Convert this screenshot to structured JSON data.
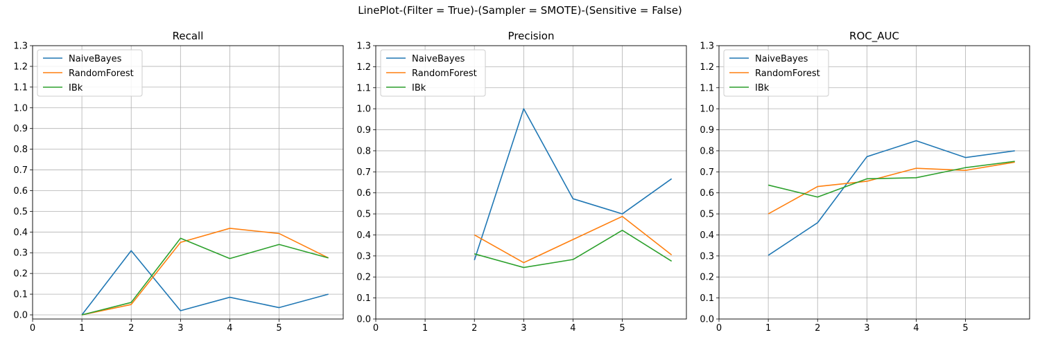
{
  "figure": {
    "suptitle": "LinePlot-(Filter = True)-(Sampler = SMOTE)-(Sensitive = False)"
  },
  "chart_data": [
    {
      "type": "line",
      "title": "Recall",
      "xlabel": "",
      "ylabel": "",
      "xlim": [
        0,
        6.3
      ],
      "ylim": [
        -0.02,
        1.3
      ],
      "xticks": [
        0,
        1,
        2,
        3,
        4,
        5
      ],
      "yticks": [
        0.0,
        0.1,
        0.2,
        0.3,
        0.4,
        0.5,
        0.6,
        0.7,
        0.8,
        0.9,
        1.0,
        1.1,
        1.2,
        1.3
      ],
      "grid": true,
      "legend": "upper-left",
      "series": [
        {
          "name": "NaiveBayes",
          "color": "#1f77b4",
          "x": [
            1,
            2,
            3,
            4,
            5,
            6
          ],
          "y": [
            0.0,
            0.31,
            0.02,
            0.085,
            0.035,
            0.1
          ]
        },
        {
          "name": "RandomForest",
          "color": "#ff7f0e",
          "x": [
            1,
            2,
            3,
            4,
            5,
            6
          ],
          "y": [
            0.0,
            0.05,
            0.35,
            0.418,
            0.393,
            0.275
          ]
        },
        {
          "name": "IBk",
          "color": "#2ca02c",
          "x": [
            1,
            2,
            3,
            4,
            5,
            6
          ],
          "y": [
            0.0,
            0.06,
            0.37,
            0.272,
            0.34,
            0.275
          ]
        }
      ]
    },
    {
      "type": "line",
      "title": "Precision",
      "xlabel": "",
      "ylabel": "",
      "xlim": [
        0,
        6.3
      ],
      "ylim": [
        0.0,
        1.3
      ],
      "xticks": [
        0,
        1,
        2,
        3,
        4,
        5
      ],
      "yticks": [
        0.0,
        0.1,
        0.2,
        0.3,
        0.4,
        0.5,
        0.6,
        0.7,
        0.8,
        0.9,
        1.0,
        1.1,
        1.2,
        1.3
      ],
      "grid": true,
      "legend": "upper-left",
      "series": [
        {
          "name": "NaiveBayes",
          "color": "#1f77b4",
          "x": [
            2,
            3,
            4,
            5,
            6
          ],
          "y": [
            0.28,
            1.0,
            0.572,
            0.5,
            0.667
          ]
        },
        {
          "name": "RandomForest",
          "color": "#ff7f0e",
          "x": [
            2,
            3,
            4,
            5,
            6
          ],
          "y": [
            0.4,
            0.268,
            0.378,
            0.488,
            0.305
          ]
        },
        {
          "name": "IBk",
          "color": "#2ca02c",
          "x": [
            2,
            3,
            4,
            5,
            6
          ],
          "y": [
            0.31,
            0.245,
            0.283,
            0.422,
            0.275
          ]
        }
      ]
    },
    {
      "type": "line",
      "title": "ROC_AUC",
      "xlabel": "",
      "ylabel": "",
      "xlim": [
        0,
        6.3
      ],
      "ylim": [
        0.0,
        1.3
      ],
      "xticks": [
        0,
        1,
        2,
        3,
        4,
        5
      ],
      "yticks": [
        0.0,
        0.1,
        0.2,
        0.3,
        0.4,
        0.5,
        0.6,
        0.7,
        0.8,
        0.9,
        1.0,
        1.1,
        1.2,
        1.3
      ],
      "grid": true,
      "legend": "upper-left",
      "series": [
        {
          "name": "NaiveBayes",
          "color": "#1f77b4",
          "x": [
            1,
            2,
            3,
            4,
            5,
            6
          ],
          "y": [
            0.303,
            0.458,
            0.772,
            0.848,
            0.768,
            0.8
          ]
        },
        {
          "name": "RandomForest",
          "color": "#ff7f0e",
          "x": [
            1,
            2,
            3,
            4,
            5,
            6
          ],
          "y": [
            0.5,
            0.63,
            0.655,
            0.717,
            0.707,
            0.746
          ]
        },
        {
          "name": "IBk",
          "color": "#2ca02c",
          "x": [
            1,
            2,
            3,
            4,
            5,
            6
          ],
          "y": [
            0.637,
            0.58,
            0.667,
            0.672,
            0.72,
            0.75
          ]
        }
      ]
    }
  ]
}
